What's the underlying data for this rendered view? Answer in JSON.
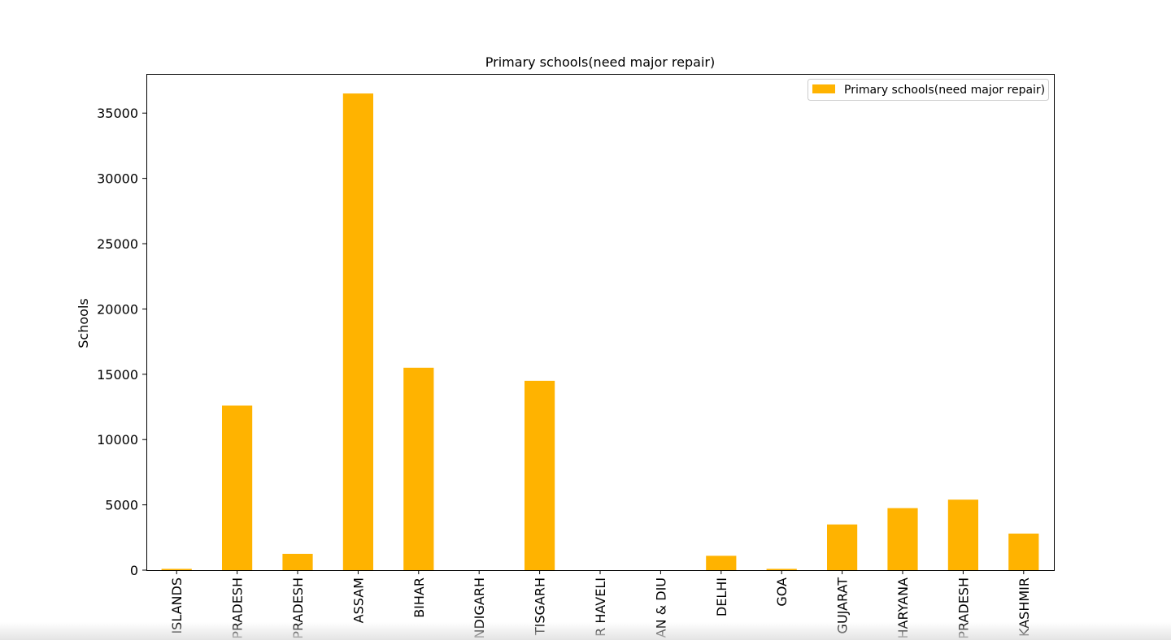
{
  "chart_data": {
    "type": "bar",
    "title": "Primary schools(need major repair)",
    "xlabel": "",
    "ylabel": "Schools",
    "categories": [
      "ISLANDS",
      "PRADESH",
      "PRADESH",
      "ASSAM",
      "BIHAR",
      "NDIGARH",
      "TISGARH",
      "R HAVELI",
      "AN & DIU",
      "DELHI",
      "GOA",
      "GUJARAT",
      "HARYANA",
      "PRADESH",
      "KASHMIR"
    ],
    "series": [
      {
        "name": "Primary schools(need major repair)",
        "color": "#FFB300",
        "values": [
          100,
          12600,
          1250,
          36500,
          15500,
          0,
          14500,
          0,
          0,
          1100,
          100,
          3500,
          4750,
          5400,
          2800
        ]
      }
    ],
    "ylim": [
      0,
      38000
    ],
    "yticks": [
      0,
      5000,
      10000,
      15000,
      20000,
      25000,
      30000,
      35000
    ],
    "grid": false,
    "legend": "top-right"
  }
}
